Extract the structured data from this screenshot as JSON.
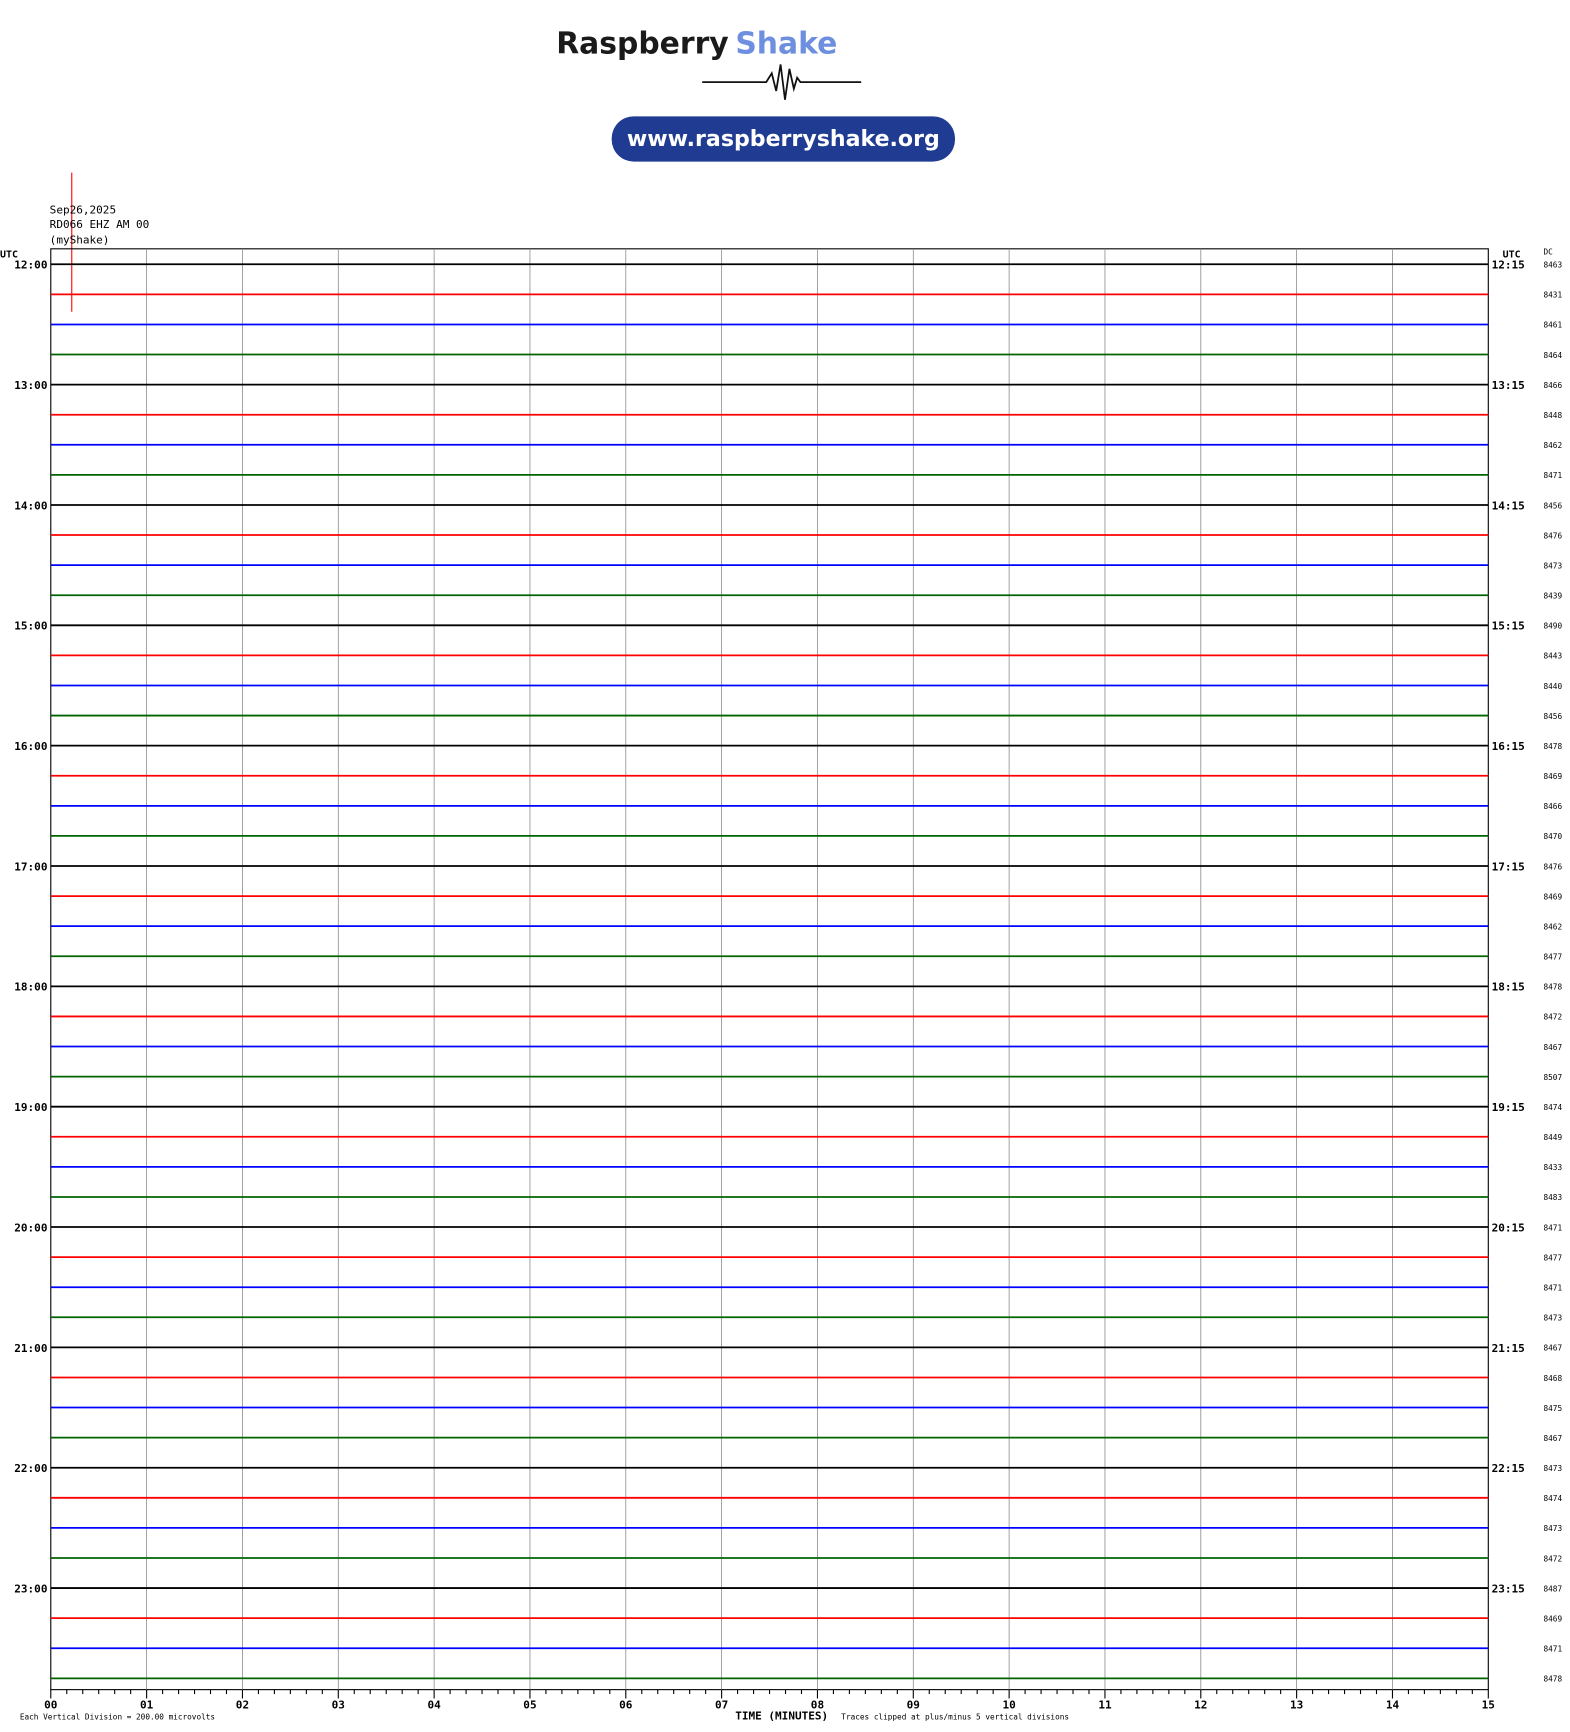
{
  "header": {
    "title_main": "Raspberry",
    "title_accent": "Shake",
    "url": "www.raspberryshake.org"
  },
  "station": {
    "date": "Sep26,2025",
    "channel": "RD066 EHZ AM 00",
    "network": "(myShake)"
  },
  "chart_data": {
    "type": "helicorder",
    "left_axis_title": "UTC",
    "right_axis_title": "UTC",
    "dc_title": "DC",
    "left_labels": [
      "12:00",
      "13:00",
      "14:00",
      "15:00",
      "16:00",
      "17:00",
      "18:00",
      "19:00",
      "20:00",
      "21:00",
      "22:00",
      "23:00"
    ],
    "right_labels": [
      "12:15",
      "13:15",
      "14:15",
      "15:15",
      "16:15",
      "17:15",
      "18:15",
      "19:15",
      "20:15",
      "21:15",
      "22:15",
      "23:15"
    ],
    "trace_colors": [
      "#000000",
      "#ff0000",
      "#0000ff",
      "#006400"
    ],
    "dc_values": [
      8463,
      8431,
      8461,
      8464,
      8466,
      8448,
      8462,
      8471,
      8456,
      8476,
      8473,
      8439,
      8490,
      8443,
      8440,
      8456,
      8478,
      8469,
      8466,
      8470,
      8476,
      8469,
      8462,
      8477,
      8478,
      8472,
      8467,
      8507,
      8474,
      8449,
      8433,
      8483,
      8471,
      8477,
      8471,
      8473,
      8467,
      8468,
      8475,
      8467,
      8473,
      8474,
      8473,
      8472,
      8487,
      8469,
      8471,
      8478
    ],
    "x_categories": [
      "00",
      "01",
      "02",
      "03",
      "04",
      "05",
      "06",
      "07",
      "08",
      "09",
      "10",
      "11",
      "12",
      "13",
      "14",
      "15"
    ],
    "xlabel": "TIME (MINUTES)",
    "footnote_left": "Each Vertical Division =  200.00 microvolts",
    "footnote_right": "Traces clipped at plus/minus 5 vertical divisions"
  }
}
